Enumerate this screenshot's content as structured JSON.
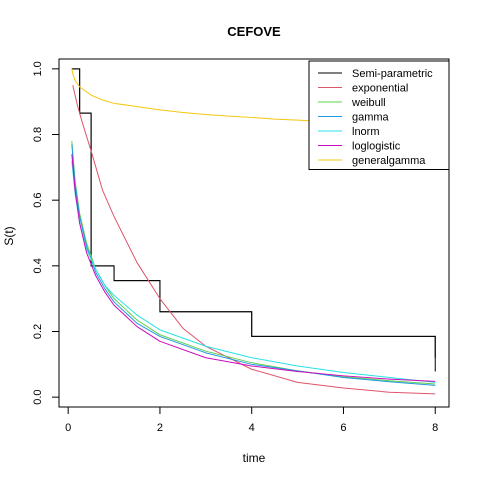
{
  "chart_data": {
    "type": "line",
    "title": "CEFOVE",
    "xlabel": "time",
    "ylabel": "S(t)",
    "xlim": [
      -0.2,
      8.3
    ],
    "ylim": [
      -0.03,
      1.03
    ],
    "xticks": [
      0,
      2,
      4,
      6,
      8
    ],
    "yticks": [
      0.0,
      0.2,
      0.4,
      0.6,
      0.8,
      1.0
    ],
    "xtick_labels": [
      "0",
      "2",
      "4",
      "6",
      "8"
    ],
    "ytick_labels": [
      "0.0",
      "0.2",
      "0.4",
      "0.6",
      "0.8",
      "1.0"
    ],
    "grid": false,
    "legend_position": "top-right",
    "series": [
      {
        "name": "Semi-parametric",
        "color": "#000000",
        "style": "step-band",
        "times": [
          0.08,
          0.25,
          0.5,
          1.0,
          2.0,
          4.0,
          8.0
        ],
        "upper": [
          1.0,
          0.865,
          0.4,
          0.355,
          0.26,
          0.185,
          0.12
        ],
        "lower": [
          1.0,
          0.865,
          0.4,
          0.355,
          0.26,
          0.185,
          0.078
        ]
      },
      {
        "name": "exponential",
        "color": "#DF536B",
        "x": [
          0.1,
          0.2,
          0.3,
          0.5,
          0.75,
          1.0,
          1.5,
          2.0,
          2.5,
          3.0,
          4.0,
          5.0,
          6.0,
          7.0,
          8.0
        ],
        "y": [
          0.95,
          0.89,
          0.84,
          0.75,
          0.63,
          0.55,
          0.41,
          0.3,
          0.21,
          0.155,
          0.085,
          0.045,
          0.028,
          0.015,
          0.01
        ]
      },
      {
        "name": "weibull",
        "color": "#61D04F",
        "x": [
          0.08,
          0.15,
          0.25,
          0.4,
          0.6,
          0.8,
          1.0,
          1.5,
          2.0,
          3.0,
          4.0,
          5.0,
          6.0,
          7.0,
          8.0
        ],
        "y": [
          0.78,
          0.66,
          0.56,
          0.47,
          0.39,
          0.34,
          0.3,
          0.235,
          0.19,
          0.14,
          0.105,
          0.08,
          0.062,
          0.05,
          0.04
        ]
      },
      {
        "name": "gamma",
        "color": "#2297E6",
        "x": [
          0.08,
          0.15,
          0.25,
          0.4,
          0.6,
          0.8,
          1.0,
          1.5,
          2.0,
          3.0,
          4.0,
          5.0,
          6.0,
          7.0,
          8.0
        ],
        "y": [
          0.77,
          0.65,
          0.55,
          0.46,
          0.38,
          0.33,
          0.29,
          0.225,
          0.185,
          0.135,
          0.1,
          0.08,
          0.06,
          0.047,
          0.036
        ]
      },
      {
        "name": "lnorm",
        "color": "#28E2E5",
        "x": [
          0.08,
          0.15,
          0.25,
          0.4,
          0.6,
          0.8,
          1.0,
          1.5,
          2.0,
          3.0,
          4.0,
          5.0,
          6.0,
          7.0,
          8.0
        ],
        "y": [
          0.72,
          0.62,
          0.53,
          0.45,
          0.39,
          0.34,
          0.31,
          0.25,
          0.205,
          0.155,
          0.12,
          0.095,
          0.075,
          0.06,
          0.045
        ]
      },
      {
        "name": "loglogistic",
        "color": "#CD0BBC",
        "x": [
          0.08,
          0.15,
          0.25,
          0.4,
          0.6,
          0.8,
          1.0,
          1.5,
          2.0,
          3.0,
          4.0,
          5.0,
          6.0,
          7.0,
          8.0
        ],
        "y": [
          0.74,
          0.63,
          0.53,
          0.44,
          0.37,
          0.32,
          0.28,
          0.215,
          0.17,
          0.12,
          0.095,
          0.078,
          0.065,
          0.055,
          0.048
        ]
      },
      {
        "name": "generalgamma",
        "color": "#F5C710",
        "x": [
          0.08,
          0.1,
          0.15,
          0.25,
          0.5,
          0.75,
          1.0,
          1.5,
          2.0,
          2.5,
          3.0,
          3.5,
          4.0,
          4.5,
          5.0,
          5.5
        ],
        "y": [
          1.0,
          0.985,
          0.965,
          0.945,
          0.92,
          0.905,
          0.895,
          0.885,
          0.875,
          0.867,
          0.861,
          0.856,
          0.852,
          0.847,
          0.844,
          0.84
        ]
      }
    ]
  }
}
